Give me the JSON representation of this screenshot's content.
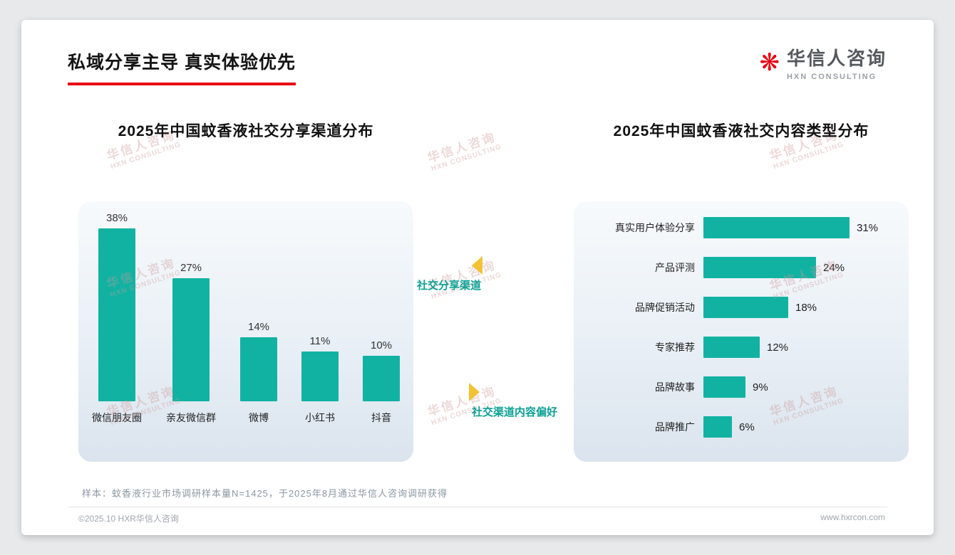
{
  "page": {
    "title": "私域分享主导 真实体验优先",
    "footnote": "样本：蚊香液行业市场调研样本量N=1425，于2025年8月通过华信人咨询调研获得",
    "footer_left": "©2025.10 HXR华信人咨询",
    "footer_right": "www.hxrcon.com"
  },
  "logo": {
    "mark": "❋",
    "name": "华信人咨询",
    "subtitle": "HXN CONSULTING"
  },
  "watermark": {
    "line1": "华信人咨询",
    "line2": "HXN CONSULTING"
  },
  "annotations": {
    "top_label": "社交分享渠道",
    "bottom_label": "社交渠道内容偏好"
  },
  "colors": {
    "bar_teal": "#12b2a2",
    "accent_red": "#e60012",
    "annotation_yellow": "#f2c232",
    "annotation_teal": "#0aa093"
  },
  "chart_data": [
    {
      "type": "bar",
      "orientation": "vertical",
      "title": "2025年中国蚊香液社交分享渠道分布",
      "categories": [
        "微信朋友圈",
        "亲友微信群",
        "微博",
        "小红书",
        "抖音"
      ],
      "values": [
        38,
        27,
        14,
        11,
        10
      ],
      "unit": "%",
      "ylim": [
        0,
        40
      ],
      "grid": false,
      "legend": false
    },
    {
      "type": "bar",
      "orientation": "horizontal",
      "title": "2025年中国蚊香液社交内容类型分布",
      "categories": [
        "真实用户体验分享",
        "产品评测",
        "品牌促销活动",
        "专家推荐",
        "品牌故事",
        "品牌推广"
      ],
      "values": [
        31,
        24,
        18,
        12,
        9,
        6
      ],
      "unit": "%",
      "xlim": [
        0,
        35
      ],
      "grid": false,
      "legend": false
    }
  ]
}
